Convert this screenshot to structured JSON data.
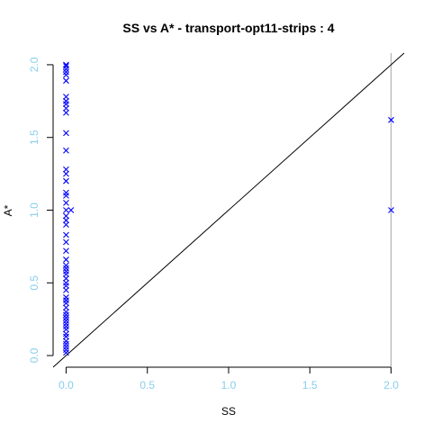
{
  "chart_data": {
    "type": "scatter",
    "title": "SS vs A* - transport-opt11-strips : 4",
    "xlabel": "SS",
    "ylabel": "A*",
    "xlim": [
      -0.08,
      2.08
    ],
    "ylim": [
      -0.08,
      2.08
    ],
    "x_ticks": [
      "0.0",
      "0.5",
      "1.0",
      "1.5",
      "2.0"
    ],
    "y_ticks": [
      "0.0",
      "0.5",
      "1.0",
      "1.5",
      "2.0"
    ],
    "tick_color": "#87ceeb",
    "marker": "x",
    "reference_line": "y = x",
    "vertical_line_x": 2.0,
    "series": [
      {
        "color": "#0000ff",
        "points": [
          [
            0,
            0.02
          ],
          [
            0,
            0.04
          ],
          [
            0,
            0.06
          ],
          [
            0,
            0.08
          ],
          [
            0,
            0.1
          ],
          [
            0,
            0.13
          ],
          [
            0,
            0.15
          ],
          [
            0,
            0.18
          ],
          [
            0,
            0.2
          ],
          [
            0,
            0.22
          ],
          [
            0,
            0.24
          ],
          [
            0,
            0.26
          ],
          [
            0,
            0.28
          ],
          [
            0,
            0.3
          ],
          [
            0,
            0.33
          ],
          [
            0,
            0.36
          ],
          [
            0,
            0.38
          ],
          [
            0,
            0.4
          ],
          [
            0,
            0.45
          ],
          [
            0,
            0.48
          ],
          [
            0,
            0.5
          ],
          [
            0,
            0.53
          ],
          [
            0,
            0.56
          ],
          [
            0,
            0.58
          ],
          [
            0,
            0.6
          ],
          [
            0,
            0.62
          ],
          [
            0,
            0.66
          ],
          [
            0,
            0.72
          ],
          [
            0,
            0.78
          ],
          [
            0,
            0.83
          ],
          [
            0,
            0.9
          ],
          [
            0,
            0.93
          ],
          [
            0,
            0.96
          ],
          [
            0,
            1.0
          ],
          [
            0,
            1.05
          ],
          [
            0,
            1.1
          ],
          [
            0,
            1.12
          ],
          [
            0,
            1.2
          ],
          [
            0,
            1.25
          ],
          [
            0,
            1.28
          ],
          [
            0,
            1.41
          ],
          [
            0,
            1.53
          ],
          [
            0,
            1.67
          ],
          [
            0,
            1.7
          ],
          [
            0,
            1.73
          ],
          [
            0,
            1.75
          ],
          [
            0,
            1.78
          ],
          [
            0,
            1.89
          ],
          [
            0,
            1.93
          ],
          [
            0,
            1.95
          ],
          [
            0,
            1.97
          ],
          [
            0,
            1.99
          ],
          [
            0,
            2.0
          ],
          [
            0.03,
            1.0
          ],
          [
            2.0,
            1.62
          ],
          [
            2.0,
            1.0
          ]
        ]
      }
    ]
  }
}
